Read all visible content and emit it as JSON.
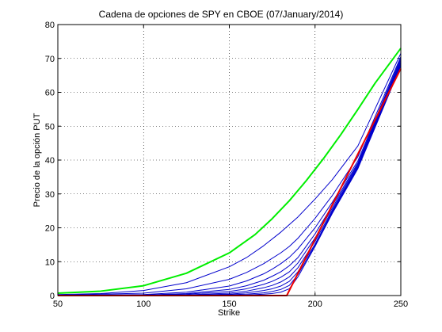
{
  "chart_data": {
    "type": "line",
    "title": "Cadena de opciones de SPY en CBOE  (07/January/2014)",
    "xlabel": "Strike",
    "ylabel": "Precio de la opción PUT",
    "xlim": [
      50,
      250
    ],
    "ylim": [
      0,
      80
    ],
    "xticks": [
      50,
      100,
      150,
      200,
      250
    ],
    "yticks": [
      0,
      10,
      20,
      30,
      40,
      50,
      60,
      70,
      80
    ],
    "grid": true,
    "legend": false,
    "series": [
      {
        "color": "#00ee00",
        "x": [
          50,
          75,
          100,
          125,
          150,
          165,
          175,
          185,
          195,
          205,
          215,
          225,
          235,
          250
        ],
        "y": [
          0.7,
          1.3,
          2.9,
          6.6,
          12.6,
          18.0,
          22.7,
          28.0,
          34.0,
          40.5,
          47.5,
          55.0,
          62.7,
          73.0
        ]
      },
      {
        "color": "#0000cc",
        "x": [
          50,
          75,
          100,
          125,
          150,
          160,
          170,
          180,
          190,
          200,
          210,
          225,
          250
        ],
        "y": [
          0.3,
          0.6,
          1.5,
          3.8,
          8.5,
          11.2,
          14.7,
          18.7,
          23.2,
          28.5,
          34.2,
          44.2,
          71.5
        ]
      },
      {
        "color": "#0000cc",
        "x": [
          50,
          100,
          125,
          150,
          160,
          170,
          180,
          185,
          190,
          200,
          210,
          225,
          250
        ],
        "y": [
          0.1,
          0.7,
          2.0,
          4.8,
          6.8,
          9.4,
          12.6,
          14.5,
          16.9,
          22.8,
          29.5,
          41.0,
          70.5
        ]
      },
      {
        "color": "#0000cc",
        "x": [
          50,
          100,
          125,
          150,
          160,
          170,
          175,
          180,
          185,
          190,
          200,
          210,
          225,
          250
        ],
        "y": [
          0.05,
          0.3,
          1.0,
          2.8,
          4.3,
          6.4,
          7.8,
          9.4,
          11.3,
          13.8,
          20.0,
          27.5,
          39.8,
          70.0
        ]
      },
      {
        "color": "#0000cc",
        "x": [
          50,
          100,
          125,
          150,
          160,
          170,
          175,
          180,
          185,
          190,
          200,
          210,
          225,
          250
        ],
        "y": [
          0.0,
          0.15,
          0.6,
          1.8,
          2.9,
          4.5,
          5.7,
          7.0,
          8.8,
          11.2,
          18.2,
          26.5,
          39.2,
          69.5
        ]
      },
      {
        "color": "#0000cc",
        "x": [
          50,
          100,
          125,
          150,
          160,
          170,
          175,
          180,
          185,
          190,
          200,
          210,
          225,
          250
        ],
        "y": [
          0.0,
          0.08,
          0.4,
          1.2,
          2.0,
          3.3,
          4.2,
          5.4,
          7.0,
          9.6,
          17.0,
          25.8,
          38.8,
          69.0
        ]
      },
      {
        "color": "#0000cc",
        "x": [
          50,
          125,
          150,
          160,
          170,
          175,
          180,
          185,
          190,
          200,
          210,
          225,
          250
        ],
        "y": [
          0.0,
          0.2,
          0.7,
          1.3,
          2.3,
          3.0,
          4.0,
          5.5,
          8.2,
          16.0,
          25.2,
          38.4,
          68.7
        ]
      },
      {
        "color": "#0000cc",
        "x": [
          50,
          125,
          150,
          160,
          170,
          175,
          180,
          185,
          190,
          200,
          210,
          225,
          250
        ],
        "y": [
          0.0,
          0.1,
          0.4,
          0.8,
          1.5,
          2.0,
          2.8,
          4.2,
          7.0,
          15.2,
          24.8,
          38.0,
          68.3
        ]
      },
      {
        "color": "#0000cc",
        "x": [
          50,
          140,
          160,
          170,
          175,
          180,
          185,
          190,
          200,
          210,
          225,
          250
        ],
        "y": [
          0.0,
          0.1,
          0.4,
          0.8,
          1.2,
          1.8,
          3.0,
          6.2,
          14.8,
          24.5,
          37.8,
          68.0
        ]
      },
      {
        "color": "#0000cc",
        "x": [
          50,
          150,
          160,
          170,
          175,
          180,
          185,
          190,
          200,
          210,
          225,
          250
        ],
        "y": [
          0.0,
          0.05,
          0.15,
          0.4,
          0.6,
          1.0,
          2.0,
          5.5,
          14.5,
          24.2,
          37.5,
          67.8
        ]
      },
      {
        "color": "#ee0000",
        "x": [
          50,
          183.5,
          250
        ],
        "y": [
          0.0,
          0.0,
          67.0
        ]
      }
    ]
  }
}
